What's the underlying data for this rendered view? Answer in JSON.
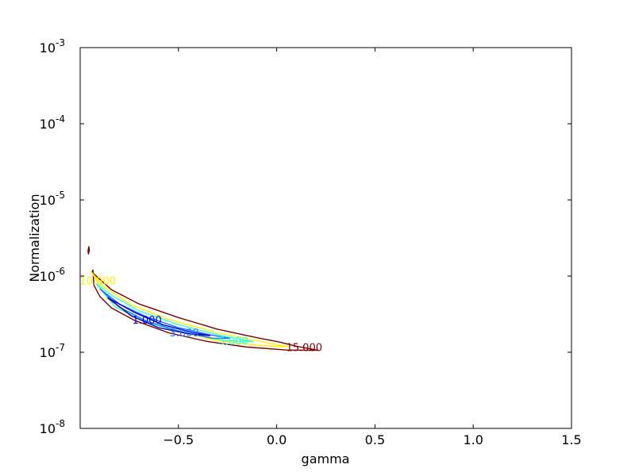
{
  "chart_data": {
    "type": "contour",
    "title": "",
    "xlabel": "gamma",
    "ylabel": "Normalization",
    "xlim": [
      -1.0,
      1.5
    ],
    "ylim": [
      1e-08,
      0.001
    ],
    "yscale": "log",
    "grid": false,
    "x_ticks": [
      {
        "value": -0.5,
        "label": "−0.5"
      },
      {
        "value": 0.0,
        "label": "0.0"
      },
      {
        "value": 0.5,
        "label": "0.5"
      },
      {
        "value": 1.0,
        "label": "1.0"
      },
      {
        "value": 1.5,
        "label": "1.5"
      }
    ],
    "y_ticks": [
      {
        "value": 1e-08,
        "base": "10",
        "exp": "-8"
      },
      {
        "value": 1e-07,
        "base": "10",
        "exp": "-7"
      },
      {
        "value": 1e-06,
        "base": "10",
        "exp": "-6"
      },
      {
        "value": 1e-05,
        "base": "10",
        "exp": "-5"
      },
      {
        "value": 0.0001,
        "base": "10",
        "exp": "-4"
      },
      {
        "value": 0.001,
        "base": "10",
        "exp": "-3"
      }
    ],
    "levels": [
      {
        "level": 1.0,
        "label": "1.000",
        "color": "#0000cc",
        "label_at": [
          -0.66,
          2.6e-07
        ],
        "paths": [
          [
            [
              -0.86,
              5.2e-07
            ],
            [
              -0.72,
              3.3e-07
            ],
            [
              -0.58,
              2.3e-07
            ],
            [
              -0.44,
              1.85e-07
            ],
            [
              -0.34,
              1.65e-07
            ],
            [
              -0.45,
              1.75e-07
            ],
            [
              -0.6,
              2.1e-07
            ],
            [
              -0.74,
              3e-07
            ],
            [
              -0.86,
              5.2e-07
            ]
          ]
        ]
      },
      {
        "level": 3.0,
        "label": "3.000",
        "color": "#1a74ff",
        "label_at": [
          -0.47,
          1.78e-07
        ],
        "paths": [
          [
            [
              -0.9,
              6.8e-07
            ],
            [
              -0.8,
              4.3e-07
            ],
            [
              -0.66,
              2.9e-07
            ],
            [
              -0.5,
              2.1e-07
            ],
            [
              -0.34,
              1.7e-07
            ],
            [
              -0.24,
              1.52e-07
            ],
            [
              -0.33,
              1.53e-07
            ],
            [
              -0.5,
              1.9e-07
            ],
            [
              -0.66,
              2.55e-07
            ],
            [
              -0.8,
              3.9e-07
            ],
            [
              -0.9,
              6.8e-07
            ]
          ]
        ]
      },
      {
        "level": 5.0,
        "label": "5.000",
        "color": "#33ffcc",
        "label_at": [
          -0.22,
          1.38e-07
        ],
        "paths": [
          [
            [
              -0.92,
              8e-07
            ],
            [
              -0.84,
              5.6e-07
            ],
            [
              -0.7,
              3.5e-07
            ],
            [
              -0.5,
              2.3e-07
            ],
            [
              -0.28,
              1.65e-07
            ],
            [
              -0.12,
              1.38e-07
            ],
            [
              -0.26,
              1.42e-07
            ],
            [
              -0.46,
              1.78e-07
            ],
            [
              -0.66,
              2.45e-07
            ],
            [
              -0.82,
              3.9e-07
            ],
            [
              -0.92,
              8e-07
            ]
          ]
        ]
      },
      {
        "level": 10.0,
        "label": "10.000",
        "color": "#ffee00",
        "label_at": [
          -0.91,
          8.6e-07
        ],
        "paths": [
          [
            [
              -0.945,
              1.15e-06
            ],
            [
              -0.88,
              7.2e-07
            ],
            [
              -0.74,
              4.2e-07
            ],
            [
              -0.55,
              2.7e-07
            ],
            [
              -0.3,
              1.8e-07
            ],
            [
              -0.06,
              1.35e-07
            ],
            [
              0.06,
              1.18e-07
            ],
            [
              -0.08,
              1.22e-07
            ],
            [
              -0.3,
              1.42e-07
            ],
            [
              -0.52,
              1.9e-07
            ],
            [
              -0.72,
              2.9e-07
            ],
            [
              -0.86,
              5e-07
            ],
            [
              -0.935,
              1.05e-06
            ],
            [
              -0.945,
              1.15e-06
            ]
          ]
        ]
      },
      {
        "level": 15.0,
        "label": "15.000",
        "color": "#7a0000",
        "label_at": [
          0.14,
          1.14e-07
        ],
        "paths": [
          [
            [
              -0.94,
              1.12e-06
            ],
            [
              -0.84,
              6.6e-07
            ],
            [
              -0.7,
              4.3e-07
            ],
            [
              -0.5,
              2.85e-07
            ],
            [
              -0.3,
              2e-07
            ],
            [
              -0.1,
              1.55e-07
            ],
            [
              0.01,
              1.37e-07
            ],
            [
              0.1,
              1.2e-07
            ],
            [
              0.21,
              1.06e-07
            ],
            [
              0.05,
              1.07e-07
            ],
            [
              -0.15,
              1.17e-07
            ],
            [
              -0.35,
              1.38e-07
            ],
            [
              -0.55,
              1.8e-07
            ],
            [
              -0.72,
              2.6e-07
            ],
            [
              -0.84,
              3.8e-07
            ],
            [
              -0.9,
              5.4e-07
            ],
            [
              -0.93,
              7.6e-07
            ],
            [
              -0.935,
              1.2e-06
            ],
            [
              -0.94,
              1.12e-06
            ]
          ],
          [
            [
              -0.956,
              2.45e-06
            ],
            [
              -0.96,
              2.15e-06
            ],
            [
              -0.958,
              1.95e-06
            ],
            [
              -0.953,
              2.2e-06
            ],
            [
              -0.956,
              2.45e-06
            ]
          ]
        ]
      }
    ]
  }
}
